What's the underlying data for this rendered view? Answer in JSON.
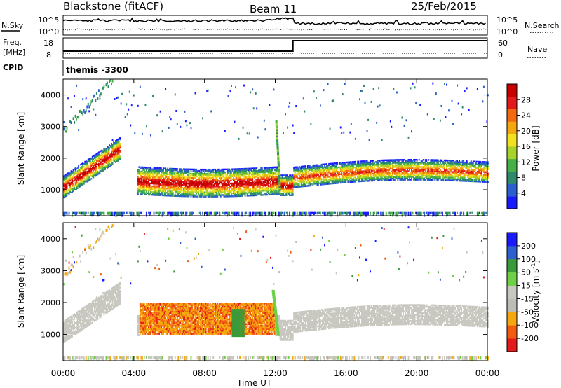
{
  "header": {
    "station": "Blackstone (fitACF)",
    "beam": "Beam 11",
    "date": "25/Feb/2015"
  },
  "noise_panel": {
    "left_label": "N.Sky",
    "right_label": "N.Search",
    "left_ticks": [
      "10^5",
      "10^0"
    ],
    "right_ticks": [
      "10^5",
      "10^0"
    ]
  },
  "freq_panel": {
    "left_label_1": "Freq.",
    "left_label_2": "[MHz]",
    "right_label": "Nave",
    "left_ticks": [
      "18",
      "8"
    ],
    "right_ticks": [
      "60",
      "0"
    ]
  },
  "cpid": {
    "label": "CPID",
    "value": "themis -3300"
  },
  "colors": {
    "power_scale": [
      "#1a1aff",
      "#2b5fcf",
      "#2e8a6a",
      "#45b048",
      "#a6d22a",
      "#f2e11e",
      "#f5a70f",
      "#f26a10",
      "#e31a1c",
      "#c80000"
    ],
    "velocity_scale": [
      "#e31a1c",
      "#f25a10",
      "#f5a70f",
      "#bdbdb5",
      "#c8c8c0",
      "#6fd048",
      "#3a9a3a",
      "#2e5fcf",
      "#1a1aff"
    ],
    "ground_scatter": "#c8c8c0"
  },
  "chart_data": [
    {
      "type": "heatmap",
      "quantity": "Power",
      "ylabel": "Slant Range [km]",
      "yticks": [
        1000,
        2000,
        3000,
        4000
      ],
      "ylim": [
        180,
        4500
      ],
      "xlim_hours": [
        0,
        24
      ],
      "colorbar": {
        "label": "Power [dB]",
        "ticks": [
          "4",
          "8",
          "12",
          "16",
          "20",
          "24",
          "28"
        ],
        "range": [
          0,
          32
        ]
      },
      "features": [
        {
          "name": "early-arc",
          "t_start": 0.0,
          "t_end": 3.0,
          "range_start_km": 1100,
          "range_end_km": 2500,
          "peak_db": 28
        },
        {
          "name": "main-band",
          "t_start": 4.2,
          "t_end": 12.1,
          "range_center_km": 1250,
          "width_km": 900,
          "peak_db": 30
        },
        {
          "name": "post-switch-band",
          "t_start": 13.0,
          "t_end": 24.0,
          "range_center_km": 1500,
          "width_km": 700,
          "peak_db": 24
        }
      ]
    },
    {
      "type": "heatmap",
      "quantity": "Velocity",
      "ylabel": "Slant Range [km]",
      "xlabel": "Time UT",
      "yticks": [
        1000,
        2000,
        3000,
        4000
      ],
      "xticks": [
        "00:00",
        "04:00",
        "08:00",
        "12:00",
        "16:00",
        "20:00",
        "00:00"
      ],
      "ylim": [
        180,
        4500
      ],
      "xlim_hours": [
        0,
        24
      ],
      "colorbar": {
        "label": "Velocity [m s^-1]",
        "ticks": [
          "200",
          "100",
          "50",
          "15",
          "-15",
          "-50",
          "-100",
          "-200"
        ]
      },
      "features": [
        {
          "name": "ground-scatter-early",
          "t_start": 0.0,
          "t_end": 4.5,
          "velocity": 0
        },
        {
          "name": "orange-flow",
          "t_start": 4.3,
          "t_end": 12.0,
          "range_start_km": 1000,
          "range_end_km": 2000,
          "velocity": -80
        },
        {
          "name": "green-streak",
          "t_start": 11.8,
          "t_end": 12.3,
          "velocity": 30
        },
        {
          "name": "ground-scatter-late",
          "t_start": 13.0,
          "t_end": 24.0,
          "velocity": 0
        }
      ]
    },
    {
      "type": "line",
      "quantity": "Frequency step",
      "freq_before_mhz": 10,
      "freq_after_mhz": 18,
      "switch_time_hours": 13.0
    }
  ]
}
